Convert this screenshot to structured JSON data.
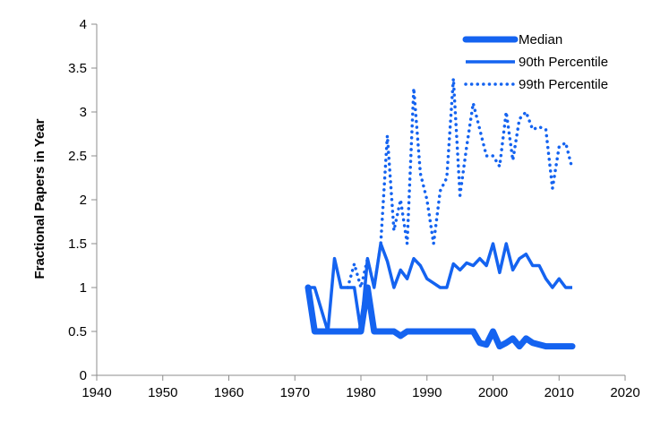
{
  "chart_data": {
    "type": "line",
    "title": "",
    "xlabel": "",
    "ylabel": "Fractional Papers in Year",
    "xlim": [
      1940,
      2020
    ],
    "ylim": [
      0,
      4
    ],
    "x_ticks": [
      1940,
      1950,
      1960,
      1970,
      1980,
      1990,
      2000,
      2010,
      2020
    ],
    "y_ticks": [
      0,
      0.5,
      1,
      1.5,
      2,
      2.5,
      3,
      3.5,
      4
    ],
    "y_tick_labels": [
      "0",
      "0.5",
      "1",
      "1.5",
      "2",
      "2.5",
      "3",
      "3.5",
      "4"
    ],
    "grid": false,
    "legend_position": "top-right",
    "series": [
      {
        "name": "Median",
        "color": "#1463f0",
        "style": "thick",
        "x": [
          1972,
          1973,
          1975,
          1980,
          1981,
          1982,
          1985,
          1986,
          1987,
          1988,
          1990,
          1995,
          1997,
          1998,
          1999,
          2000,
          2001,
          2002,
          2003,
          2004,
          2005,
          2006,
          2008,
          2010,
          2012
        ],
        "y": [
          1.0,
          0.5,
          0.5,
          0.5,
          1.0,
          0.5,
          0.5,
          0.45,
          0.5,
          0.5,
          0.5,
          0.5,
          0.5,
          0.37,
          0.35,
          0.5,
          0.33,
          0.37,
          0.42,
          0.33,
          0.42,
          0.37,
          0.33,
          0.33,
          0.33
        ]
      },
      {
        "name": "90th Percentile",
        "color": "#1463f0",
        "style": "solid",
        "x": [
          1972,
          1973,
          1975,
          1976,
          1977,
          1979,
          1980,
          1981,
          1982,
          1983,
          1984,
          1985,
          1986,
          1987,
          1988,
          1989,
          1990,
          1991,
          1992,
          1993,
          1994,
          1995,
          1996,
          1997,
          1998,
          1999,
          2000,
          2001,
          2002,
          2003,
          2004,
          2005,
          2006,
          2007,
          2008,
          2009,
          2010,
          2011,
          2012
        ],
        "y": [
          1.0,
          1.0,
          0.5,
          1.33,
          1.0,
          1.0,
          0.5,
          1.33,
          1.0,
          1.5,
          1.3,
          1.0,
          1.2,
          1.1,
          1.33,
          1.25,
          1.1,
          1.05,
          1.0,
          1.0,
          1.27,
          1.2,
          1.28,
          1.25,
          1.33,
          1.25,
          1.5,
          1.17,
          1.5,
          1.2,
          1.33,
          1.38,
          1.25,
          1.25,
          1.1,
          1.0,
          1.1,
          1.0,
          1.0
        ]
      },
      {
        "name": "99th Percentile",
        "color": "#1463f0",
        "style": "dotted",
        "x": [
          1978,
          1979,
          1980,
          1981,
          1982,
          1983,
          1984,
          1985,
          1986,
          1987,
          1988,
          1989,
          1990,
          1991,
          1992,
          1993,
          1994,
          1995,
          1996,
          1997,
          1998,
          1999,
          2000,
          2001,
          2002,
          2003,
          2004,
          2005,
          2006,
          2007,
          2008,
          2009,
          2010,
          2011,
          2012
        ],
        "y": [
          1.0,
          1.27,
          1.0,
          1.33,
          1.0,
          1.5,
          2.73,
          1.65,
          2.0,
          1.5,
          3.27,
          2.3,
          2.0,
          1.5,
          2.1,
          2.25,
          3.38,
          2.05,
          2.6,
          3.1,
          2.8,
          2.5,
          2.5,
          2.38,
          3.0,
          2.45,
          2.92,
          3.0,
          2.8,
          2.83,
          2.8,
          2.13,
          2.6,
          2.65,
          2.35
        ]
      }
    ]
  }
}
